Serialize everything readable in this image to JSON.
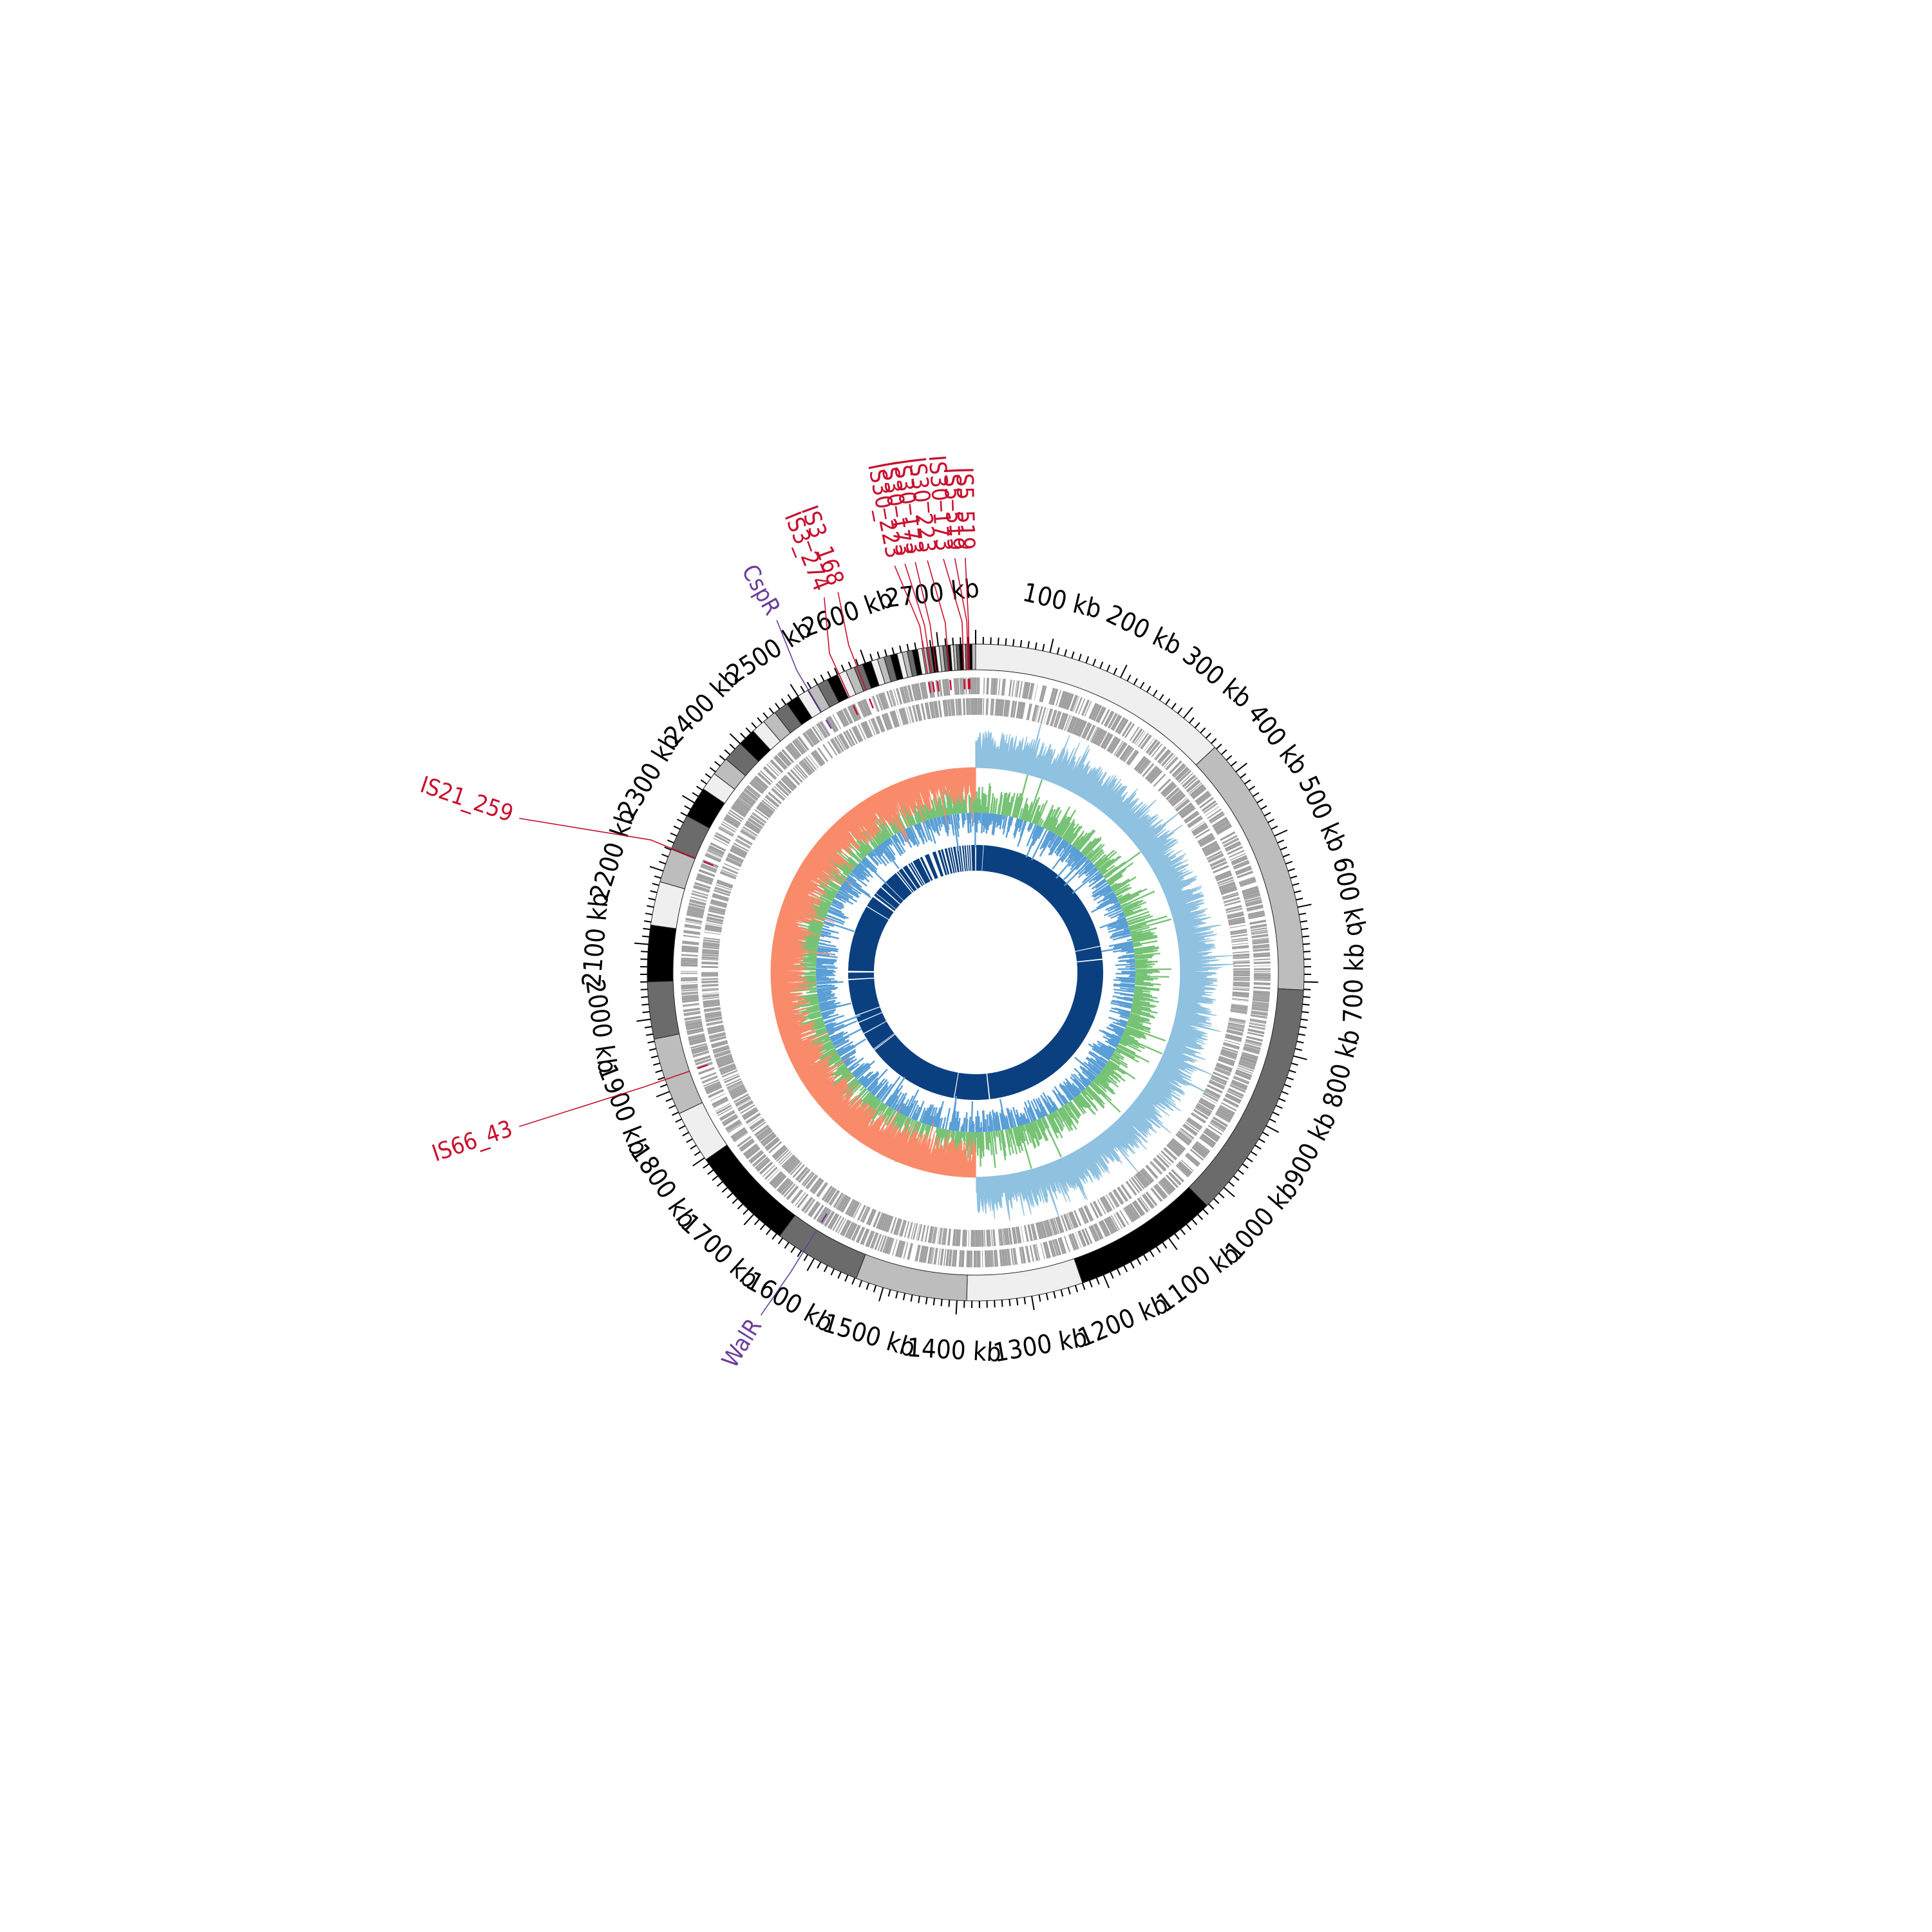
{
  "figure": {
    "kind": "circular genome map",
    "genome_length_kb": 2750,
    "unit": "kb",
    "tick_labels": [
      {
        "kb": 100,
        "text": "100 kb"
      },
      {
        "kb": 200,
        "text": "200 kb"
      },
      {
        "kb": 300,
        "text": "300 kb"
      },
      {
        "kb": 400,
        "text": "400 kb"
      },
      {
        "kb": 500,
        "text": "500 kb"
      },
      {
        "kb": 600,
        "text": "600 kb"
      },
      {
        "kb": 700,
        "text": "700 kb"
      },
      {
        "kb": 800,
        "text": "800 kb"
      },
      {
        "kb": 900,
        "text": "900 kb"
      },
      {
        "kb": 1000,
        "text": "1000 kb"
      },
      {
        "kb": 1100,
        "text": "1100 kb"
      },
      {
        "kb": 1200,
        "text": "1200 kb"
      },
      {
        "kb": 1300,
        "text": "1300 kb"
      },
      {
        "kb": 1400,
        "text": "1400 kb"
      },
      {
        "kb": 1500,
        "text": "1500 kb"
      },
      {
        "kb": 1600,
        "text": "1600 kb"
      },
      {
        "kb": 1700,
        "text": "1700 kb"
      },
      {
        "kb": 1800,
        "text": "1800 kb"
      },
      {
        "kb": 1900,
        "text": "1900 kb"
      },
      {
        "kb": 2000,
        "text": "2000 kb"
      },
      {
        "kb": 2100,
        "text": "2100 kb"
      },
      {
        "kb": 2200,
        "text": "2200 kb"
      },
      {
        "kb": 2300,
        "text": "2300 kb"
      },
      {
        "kb": 2400,
        "text": "2400 kb"
      },
      {
        "kb": 2500,
        "text": "2500 kb"
      },
      {
        "kb": 2600,
        "text": "2600 kb"
      },
      {
        "kb": 2700,
        "text": "2700 kb"
      }
    ],
    "ideogram_blocks": [
      {
        "start": 0,
        "end": 357,
        "shade": "#efefef"
      },
      {
        "start": 357,
        "end": 711,
        "shade": "#bdbdbd"
      },
      {
        "start": 711,
        "end": 1033,
        "shade": "#6b6b6b"
      },
      {
        "start": 1033,
        "end": 1230,
        "shade": "#000000"
      },
      {
        "start": 1230,
        "end": 1387,
        "shade": "#efefef"
      },
      {
        "start": 1387,
        "end": 1538,
        "shade": "#bdbdbd"
      },
      {
        "start": 1538,
        "end": 1655,
        "shade": "#6b6b6b"
      },
      {
        "start": 1655,
        "end": 1797,
        "shade": "#000000"
      },
      {
        "start": 1797,
        "end": 1868,
        "shade": "#efefef"
      },
      {
        "start": 1868,
        "end": 1973,
        "shade": "#bdbdbd"
      },
      {
        "start": 1973,
        "end": 2050,
        "shade": "#6b6b6b"
      },
      {
        "start": 2050,
        "end": 2126,
        "shade": "#000000"
      },
      {
        "start": 2126,
        "end": 2185,
        "shade": "#efefef"
      },
      {
        "start": 2185,
        "end": 2231,
        "shade": "#bdbdbd"
      },
      {
        "start": 2231,
        "end": 2280,
        "shade": "#6b6b6b"
      },
      {
        "start": 2280,
        "end": 2322,
        "shade": "#000000"
      },
      {
        "start": 2322,
        "end": 2347,
        "shade": "#efefef"
      },
      {
        "start": 2347,
        "end": 2372,
        "shade": "#bdbdbd"
      },
      {
        "start": 2372,
        "end": 2400,
        "shade": "#6b6b6b"
      },
      {
        "start": 2400,
        "end": 2424,
        "shade": "#000000"
      },
      {
        "start": 2424,
        "end": 2443,
        "shade": "#efefef"
      },
      {
        "start": 2443,
        "end": 2462,
        "shade": "#bdbdbd"
      },
      {
        "start": 2462,
        "end": 2482,
        "shade": "#6b6b6b"
      },
      {
        "start": 2482,
        "end": 2500,
        "shade": "#000000"
      },
      {
        "start": 2500,
        "end": 2515,
        "shade": "#efefef"
      },
      {
        "start": 2515,
        "end": 2530,
        "shade": "#bdbdbd"
      },
      {
        "start": 2530,
        "end": 2545,
        "shade": "#6b6b6b"
      },
      {
        "start": 2545,
        "end": 2560,
        "shade": "#000000"
      },
      {
        "start": 2560,
        "end": 2572,
        "shade": "#efefef"
      },
      {
        "start": 2572,
        "end": 2584,
        "shade": "#bdbdbd"
      },
      {
        "start": 2584,
        "end": 2596,
        "shade": "#6b6b6b"
      },
      {
        "start": 2596,
        "end": 2608,
        "shade": "#000000"
      },
      {
        "start": 2608,
        "end": 2617,
        "shade": "#efefef"
      },
      {
        "start": 2617,
        "end": 2626,
        "shade": "#bdbdbd"
      },
      {
        "start": 2626,
        "end": 2635,
        "shade": "#6b6b6b"
      },
      {
        "start": 2635,
        "end": 2644,
        "shade": "#000000"
      },
      {
        "start": 2644,
        "end": 2651,
        "shade": "#efefef"
      },
      {
        "start": 2651,
        "end": 2658,
        "shade": "#bdbdbd"
      },
      {
        "start": 2658,
        "end": 2665,
        "shade": "#6b6b6b"
      },
      {
        "start": 2665,
        "end": 2672,
        "shade": "#000000"
      },
      {
        "start": 2672,
        "end": 2678,
        "shade": "#efefef"
      },
      {
        "start": 2678,
        "end": 2684,
        "shade": "#bdbdbd"
      },
      {
        "start": 2684,
        "end": 2690,
        "shade": "#6b6b6b"
      },
      {
        "start": 2690,
        "end": 2696,
        "shade": "#000000"
      },
      {
        "start": 2696,
        "end": 2701,
        "shade": "#efefef"
      },
      {
        "start": 2701,
        "end": 2706,
        "shade": "#bdbdbd"
      },
      {
        "start": 2706,
        "end": 2711,
        "shade": "#6b6b6b"
      },
      {
        "start": 2711,
        "end": 2716,
        "shade": "#000000"
      },
      {
        "start": 2716,
        "end": 2720,
        "shade": "#efefef"
      },
      {
        "start": 2720,
        "end": 2724,
        "shade": "#bdbdbd"
      },
      {
        "start": 2724,
        "end": 2728,
        "shade": "#6b6b6b"
      },
      {
        "start": 2728,
        "end": 2732,
        "shade": "#000000"
      },
      {
        "start": 2732,
        "end": 2736,
        "shade": "#efefef"
      },
      {
        "start": 2736,
        "end": 2740,
        "shade": "#6b6b6b"
      },
      {
        "start": 2740,
        "end": 2745,
        "shade": "#000000"
      },
      {
        "start": 2745,
        "end": 2750,
        "shade": "#bdbdbd"
      }
    ],
    "insertion_sequences": [
      {
        "name": "IS30_223",
        "kb": 2680
      },
      {
        "name": "IS30_173",
        "kb": 2686
      },
      {
        "name": "IS30_173",
        "kb": 2693
      },
      {
        "name": "IS30_223",
        "kb": 2712
      },
      {
        "name": "IS30_173",
        "kb": 2733
      },
      {
        "name": "IS5_519",
        "kb": 2739
      },
      {
        "name": "IS5_519",
        "kb": 2741
      },
      {
        "name": "IS3_168",
        "kb": 2588
      },
      {
        "name": "IS3_274",
        "kb": 2562
      },
      {
        "name": "IS21_259",
        "kb": 2232
      },
      {
        "name": "IS66_43",
        "kb": 1917
      }
    ],
    "regulators": [
      {
        "name": "CspR",
        "kb": 2516
      },
      {
        "name": "WalR",
        "kb": 1617
      }
    ],
    "colors": {
      "insertion_sequence": "#c8102e",
      "regulator": "#6a3d9a",
      "gc_skew_positive": "#8fc1e0",
      "gc_skew_negative": "#f98b6a",
      "gc_content": "#76c376",
      "gc_content_dip": "#5a9fd6",
      "gene_tracks": "#9e9e9e",
      "core_blocks": "#0b4080"
    },
    "core_genome_gaps_kb": [
      [
        2748,
        2750
      ],
      [
        26,
        28
      ],
      [
        595,
        598
      ],
      [
        640,
        644
      ],
      [
        1325,
        1329
      ],
      [
        1448,
        1451
      ],
      [
        1775,
        1778
      ],
      [
        1780,
        1782
      ],
      [
        1842,
        1845
      ],
      [
        1884,
        1887
      ],
      [
        1910,
        1913
      ],
      [
        2036,
        2040
      ],
      [
        2062,
        2068
      ],
      [
        2300,
        2303
      ],
      [
        2340,
        2346
      ],
      [
        2355,
        2357
      ],
      [
        2382,
        2386
      ],
      [
        2404,
        2406
      ],
      [
        2454,
        2458
      ],
      [
        2463,
        2466
      ],
      [
        2480,
        2484
      ],
      [
        2500,
        2506
      ],
      [
        2512,
        2515
      ],
      [
        2520,
        2524
      ],
      [
        2548,
        2552
      ],
      [
        2560,
        2570
      ],
      [
        2585,
        2598
      ],
      [
        2610,
        2618
      ],
      [
        2626,
        2629
      ],
      [
        2636,
        2642
      ],
      [
        2650,
        2654
      ],
      [
        2660,
        2663
      ],
      [
        2668,
        2672
      ],
      [
        2680,
        2684
      ],
      [
        2690,
        2693
      ],
      [
        2698,
        2703
      ],
      [
        2708,
        2711
      ],
      [
        2716,
        2720
      ],
      [
        2724,
        2727
      ],
      [
        2731,
        2735
      ]
    ]
  }
}
